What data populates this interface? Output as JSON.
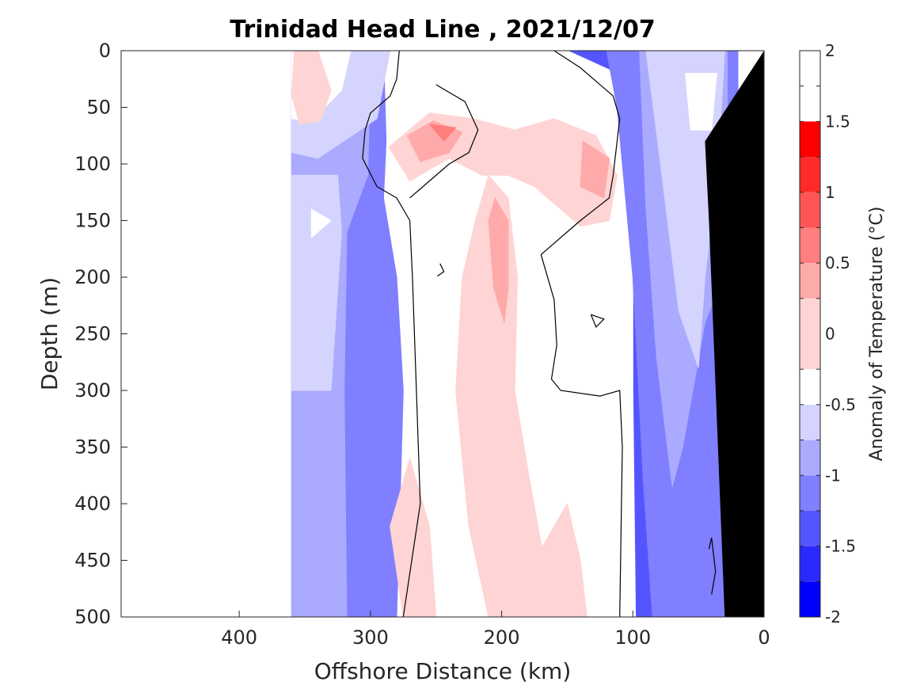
{
  "chart_data": {
    "type": "heatmap",
    "title": "Trinidad Head Line , 2021/12/07",
    "xlabel": "Offshore Distance (km)",
    "ylabel": "Depth (m)",
    "xlim": [
      490,
      0
    ],
    "ylim": [
      500,
      0
    ],
    "x_reversed": true,
    "y_reversed": true,
    "x_ticks": [
      400,
      300,
      200,
      100,
      0
    ],
    "y_ticks": [
      0,
      50,
      100,
      150,
      200,
      250,
      300,
      350,
      400,
      450,
      500
    ],
    "colorbar": {
      "label": "Anomaly of Temperature (°C)",
      "range": [
        -2,
        2
      ],
      "ticks": [
        2,
        1.5,
        1,
        0.5,
        0,
        -0.5,
        -1,
        -1.5,
        -2
      ],
      "levels": [
        -2,
        -1.75,
        -1.5,
        -1.25,
        -1,
        -0.75,
        -0.5,
        -0.25,
        0.25,
        0.5,
        0.75,
        1,
        1.25,
        1.5,
        1.75,
        2
      ],
      "colors": [
        "#0000ff",
        "#2a2aff",
        "#5555ff",
        "#7f7fff",
        "#aaaaff",
        "#d4d4ff",
        "#ffffff",
        "#ffd4d4",
        "#ffaaaa",
        "#ff7f7f",
        "#ff5555",
        "#ff2a2a",
        "#ff0000"
      ]
    },
    "section_extent_km": [
      360,
      20
    ],
    "bathymetry_color": "#000000",
    "zero_contour_color": "#000000",
    "grid": false
  }
}
